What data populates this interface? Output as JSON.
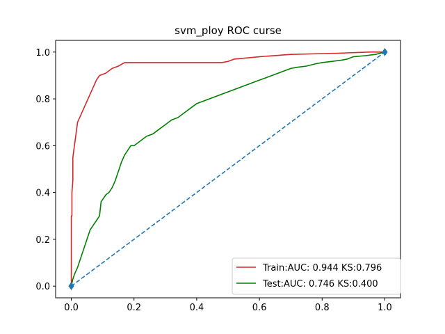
{
  "chart_data": {
    "type": "line",
    "title": "svm_ploy ROC curse",
    "xlabel": "",
    "ylabel": "",
    "xlim": [
      -0.05,
      1.05
    ],
    "ylim": [
      -0.05,
      1.05
    ],
    "xticks": [
      0.0,
      0.2,
      0.4,
      0.6,
      0.8,
      1.0
    ],
    "yticks": [
      0.0,
      0.2,
      0.4,
      0.6,
      0.8,
      1.0
    ],
    "xtick_labels": [
      "0.0",
      "0.2",
      "0.4",
      "0.6",
      "0.8",
      "1.0"
    ],
    "ytick_labels": [
      "0.0",
      "0.2",
      "0.4",
      "0.6",
      "0.8",
      "1.0"
    ],
    "grid": false,
    "legend_position": "lower-right",
    "series": [
      {
        "name": "Train:AUC: 0.944 KS:0.796",
        "color": "#d62728",
        "style": "solid",
        "points": [
          [
            0,
            0
          ],
          [
            0.0,
            0.3
          ],
          [
            0.002,
            0.3
          ],
          [
            0.002,
            0.4
          ],
          [
            0.005,
            0.45
          ],
          [
            0.005,
            0.55
          ],
          [
            0.01,
            0.6
          ],
          [
            0.015,
            0.65
          ],
          [
            0.02,
            0.7
          ],
          [
            0.03,
            0.73
          ],
          [
            0.04,
            0.76
          ],
          [
            0.05,
            0.79
          ],
          [
            0.06,
            0.82
          ],
          [
            0.07,
            0.85
          ],
          [
            0.08,
            0.88
          ],
          [
            0.09,
            0.9
          ],
          [
            0.11,
            0.91
          ],
          [
            0.13,
            0.93
          ],
          [
            0.15,
            0.94
          ],
          [
            0.17,
            0.955
          ],
          [
            0.3,
            0.955
          ],
          [
            0.48,
            0.955
          ],
          [
            0.5,
            0.96
          ],
          [
            0.52,
            0.97
          ],
          [
            0.6,
            0.98
          ],
          [
            0.7,
            0.99
          ],
          [
            0.85,
            0.995
          ],
          [
            0.95,
            1.0
          ],
          [
            1.0,
            1.0
          ]
        ]
      },
      {
        "name": "Test:AUC: 0.746 KS:0.400",
        "color": "#008000",
        "style": "solid",
        "points": [
          [
            0,
            0
          ],
          [
            0.005,
            0.03
          ],
          [
            0.01,
            0.05
          ],
          [
            0.02,
            0.08
          ],
          [
            0.03,
            0.12
          ],
          [
            0.04,
            0.16
          ],
          [
            0.05,
            0.2
          ],
          [
            0.06,
            0.24
          ],
          [
            0.07,
            0.26
          ],
          [
            0.08,
            0.28
          ],
          [
            0.09,
            0.3
          ],
          [
            0.095,
            0.36
          ],
          [
            0.1,
            0.37
          ],
          [
            0.11,
            0.39
          ],
          [
            0.12,
            0.4
          ],
          [
            0.13,
            0.42
          ],
          [
            0.14,
            0.45
          ],
          [
            0.15,
            0.49
          ],
          [
            0.16,
            0.53
          ],
          [
            0.17,
            0.56
          ],
          [
            0.18,
            0.58
          ],
          [
            0.19,
            0.6
          ],
          [
            0.2,
            0.6
          ],
          [
            0.22,
            0.62
          ],
          [
            0.24,
            0.64
          ],
          [
            0.26,
            0.65
          ],
          [
            0.28,
            0.67
          ],
          [
            0.3,
            0.69
          ],
          [
            0.32,
            0.71
          ],
          [
            0.34,
            0.72
          ],
          [
            0.36,
            0.74
          ],
          [
            0.38,
            0.76
          ],
          [
            0.4,
            0.78
          ],
          [
            0.42,
            0.79
          ],
          [
            0.44,
            0.8
          ],
          [
            0.46,
            0.81
          ],
          [
            0.48,
            0.82
          ],
          [
            0.5,
            0.83
          ],
          [
            0.52,
            0.84
          ],
          [
            0.54,
            0.85
          ],
          [
            0.56,
            0.86
          ],
          [
            0.58,
            0.87
          ],
          [
            0.6,
            0.88
          ],
          [
            0.62,
            0.89
          ],
          [
            0.64,
            0.9
          ],
          [
            0.66,
            0.91
          ],
          [
            0.68,
            0.92
          ],
          [
            0.7,
            0.93
          ],
          [
            0.72,
            0.935
          ],
          [
            0.75,
            0.94
          ],
          [
            0.78,
            0.95
          ],
          [
            0.8,
            0.955
          ],
          [
            0.83,
            0.96
          ],
          [
            0.86,
            0.965
          ],
          [
            0.88,
            0.97
          ],
          [
            0.9,
            0.98
          ],
          [
            0.94,
            0.985
          ],
          [
            0.97,
            0.99
          ],
          [
            1.0,
            1.0
          ]
        ]
      },
      {
        "name": "",
        "color": "#1f77b4",
        "style": "dashed",
        "marker": "diamond",
        "points": [
          [
            0,
            0
          ],
          [
            1,
            1
          ]
        ]
      }
    ]
  }
}
